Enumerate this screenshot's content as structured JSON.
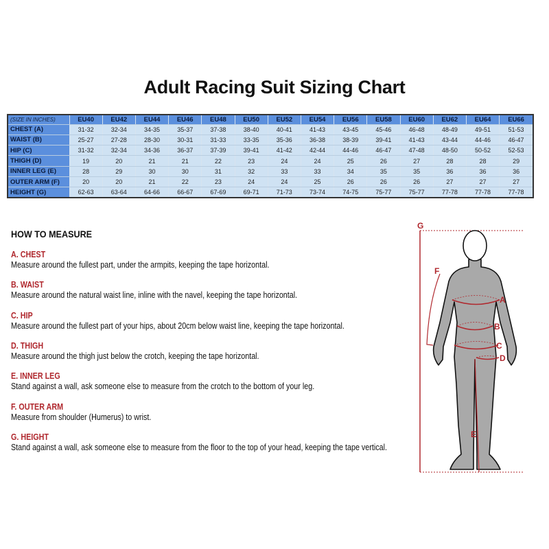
{
  "title": "Adult Racing Suit Sizing Chart",
  "table": {
    "corner": "(SIZE IN INCHES)",
    "sizes": [
      "EU40",
      "EU42",
      "EU44",
      "EU46",
      "EU48",
      "EU50",
      "EU52",
      "EU54",
      "EU56",
      "EU58",
      "EU60",
      "EU62",
      "EU64",
      "EU66"
    ],
    "rows": [
      {
        "label": "CHEST (A)",
        "values": [
          "31-32",
          "32-34",
          "34-35",
          "35-37",
          "37-38",
          "38-40",
          "40-41",
          "41-43",
          "43-45",
          "45-46",
          "46-48",
          "48-49",
          "49-51",
          "51-53"
        ]
      },
      {
        "label": "WAIST (B)",
        "values": [
          "25-27",
          "27-28",
          "28-30",
          "30-31",
          "31-33",
          "33-35",
          "35-36",
          "36-38",
          "38-39",
          "39-41",
          "41-43",
          "43-44",
          "44-46",
          "46-47"
        ]
      },
      {
        "label": "HIP (C)",
        "values": [
          "31-32",
          "32-34",
          "34-36",
          "36-37",
          "37-39",
          "39-41",
          "41-42",
          "42-44",
          "44-46",
          "46-47",
          "47-48",
          "48-50",
          "50-52",
          "52-53"
        ]
      },
      {
        "label": "THIGH (D)",
        "values": [
          "19",
          "20",
          "21",
          "21",
          "22",
          "23",
          "24",
          "24",
          "25",
          "26",
          "27",
          "28",
          "28",
          "29"
        ]
      },
      {
        "label": "INNER LEG (E)",
        "values": [
          "28",
          "29",
          "30",
          "30",
          "31",
          "32",
          "33",
          "33",
          "34",
          "35",
          "35",
          "36",
          "36",
          "36"
        ]
      },
      {
        "label": "OUTER ARM (F)",
        "values": [
          "20",
          "20",
          "21",
          "22",
          "23",
          "24",
          "24",
          "25",
          "26",
          "26",
          "26",
          "27",
          "27",
          "27"
        ]
      },
      {
        "label": "HEIGHT (G)",
        "values": [
          "62-63",
          "63-64",
          "64-66",
          "66-67",
          "67-69",
          "69-71",
          "71-73",
          "73-74",
          "74-75",
          "75-77",
          "75-77",
          "77-78",
          "77-78",
          "77-78"
        ]
      }
    ]
  },
  "how_to_measure": {
    "heading": "HOW TO MEASURE",
    "sections": [
      {
        "title": "A. CHEST",
        "text": "Measure around the fullest part, under the armpits, keeping the tape horizontal."
      },
      {
        "title": "B. WAIST",
        "text": "Measure around the natural waist line, inline with the navel, keeping the tape horizontal."
      },
      {
        "title": "C. HIP",
        "text": "Measure around the fullest part of your hips, about 20cm below waist line, keeping the tape horizontal."
      },
      {
        "title": "D. THIGH",
        "text": "Measure around the thigh just below the crotch, keeping the tape horizontal."
      },
      {
        "title": "E. INNER LEG",
        "text": "Stand against a wall, ask someone else to measure from the crotch to the bottom of your leg."
      },
      {
        "title": "F. OUTER ARM",
        "text": "Measure from shoulder (Humerus) to wrist."
      },
      {
        "title": "G. HEIGHT",
        "text": "Stand against a wall, ask someone else to measure from the floor to the top of your head, keeping the tape vertical."
      }
    ]
  },
  "figure": {
    "labels": {
      "A": "A",
      "B": "B",
      "C": "C",
      "D": "D",
      "E": "E",
      "F": "F",
      "G": "G"
    },
    "accent": "#b0282e",
    "body_color": "#a9a9a9"
  }
}
